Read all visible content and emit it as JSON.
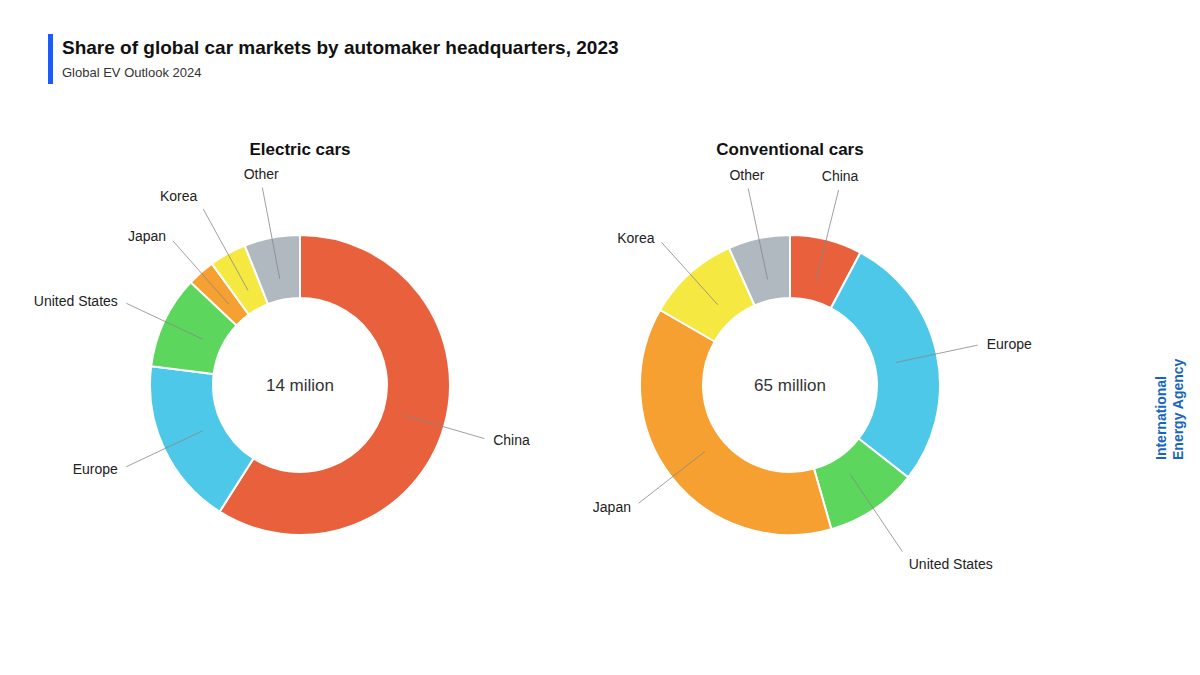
{
  "title": "Share of global car markets by automaker headquarters, 2023",
  "subtitle": "Global EV Outlook 2024",
  "annotations": [
    "International",
    "Energy Agency"
  ],
  "chart_data": [
    {
      "type": "donut",
      "title": "Electric cars",
      "annotations": [
        "14 milion"
      ],
      "categories": [
        "China",
        "Europe",
        "United States",
        "Japan",
        "Korea",
        "Other"
      ],
      "values": [
        59,
        18,
        10,
        3,
        4,
        6
      ],
      "colors": [
        "#E8603C",
        "#4DC8E8",
        "#5CD65C",
        "#F5A030",
        "#F5E840",
        "#B0B8C0"
      ]
    },
    {
      "type": "donut",
      "title": "Conventional cars",
      "annotations": [
        "65 million"
      ],
      "categories": [
        "China",
        "Europe",
        "United States",
        "Japan",
        "Korea",
        "Other"
      ],
      "values": [
        7,
        25,
        9,
        34,
        9,
        6
      ],
      "colors": [
        "#E8603C",
        "#4DC8E8",
        "#5CD65C",
        "#F5A030",
        "#F5E840",
        "#B0B8C0"
      ]
    }
  ]
}
